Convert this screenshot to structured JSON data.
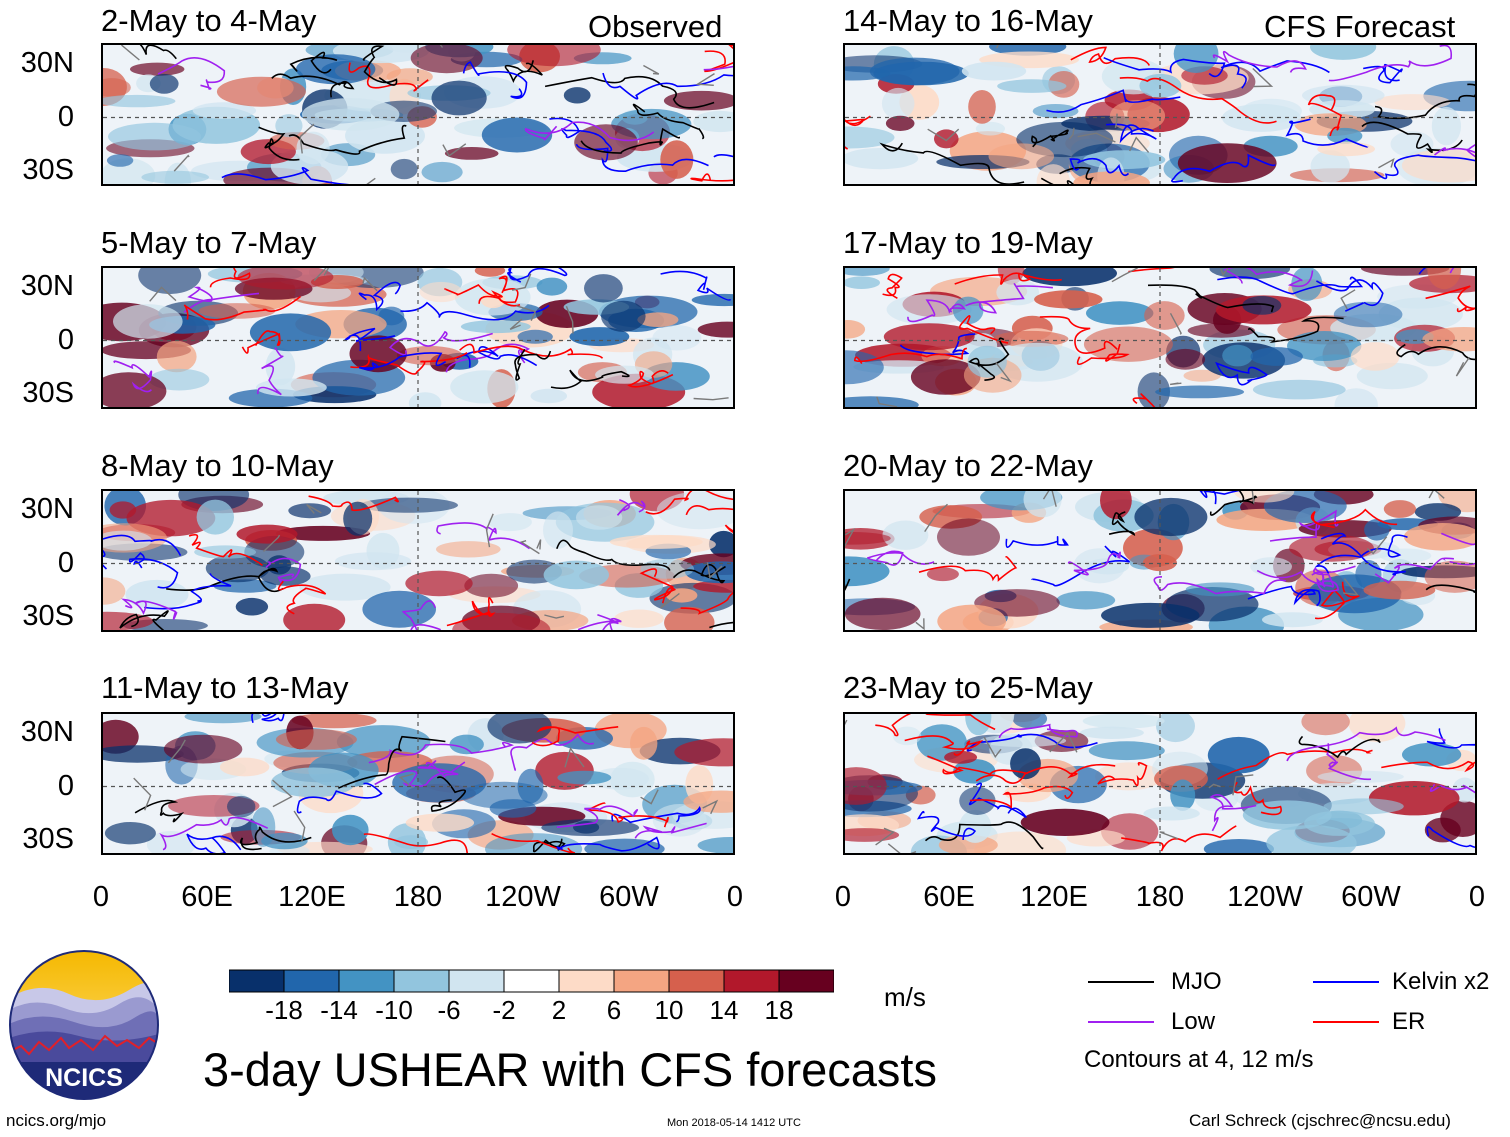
{
  "header": {
    "left_label": "Observed",
    "right_label": "CFS Forecast"
  },
  "panels": [
    {
      "title": "2-May to 4-May",
      "group": "observed"
    },
    {
      "title": "5-May to 7-May",
      "group": "observed"
    },
    {
      "title": "8-May to 10-May",
      "group": "observed"
    },
    {
      "title": "11-May to 13-May",
      "group": "observed"
    },
    {
      "title": "14-May to 16-May",
      "group": "forecast"
    },
    {
      "title": "17-May to 19-May",
      "group": "forecast"
    },
    {
      "title": "20-May to 22-May",
      "group": "forecast"
    },
    {
      "title": "23-May to 25-May",
      "group": "forecast"
    }
  ],
  "lat_ticks": [
    "30N",
    "0",
    "30S"
  ],
  "lon_ticks": [
    "0",
    "60E",
    "120E",
    "180",
    "120W",
    "60W",
    "0"
  ],
  "colorbar": {
    "unit": "m/s",
    "tick_labels": [
      "-18",
      "-14",
      "-10",
      "-6",
      "-2",
      "2",
      "6",
      "10",
      "14",
      "18"
    ],
    "colors": [
      "#08306b",
      "#2166ac",
      "#4393c3",
      "#92c5de",
      "#d1e5f0",
      "#ffffff",
      "#fddbc7",
      "#f4a582",
      "#d6604d",
      "#b2182b",
      "#67001f"
    ]
  },
  "legend": {
    "items": [
      {
        "label": "MJO",
        "color": "#000000"
      },
      {
        "label": "Kelvin x2",
        "color": "#0000ff"
      },
      {
        "label": "Low",
        "color": "#a020f0"
      },
      {
        "label": "ER",
        "color": "#ff0000"
      }
    ],
    "contours_note": "Contours at 4, 12 m/s"
  },
  "main_title": "3-day USHEAR with CFS forecasts",
  "logo": {
    "text": "NCICS"
  },
  "footer": {
    "url": "ncics.org/mjo",
    "timestamp": "Mon 2018-05-14 1412 UTC",
    "author": "Carl Schreck (cjschrec@ncsu.edu)"
  }
}
